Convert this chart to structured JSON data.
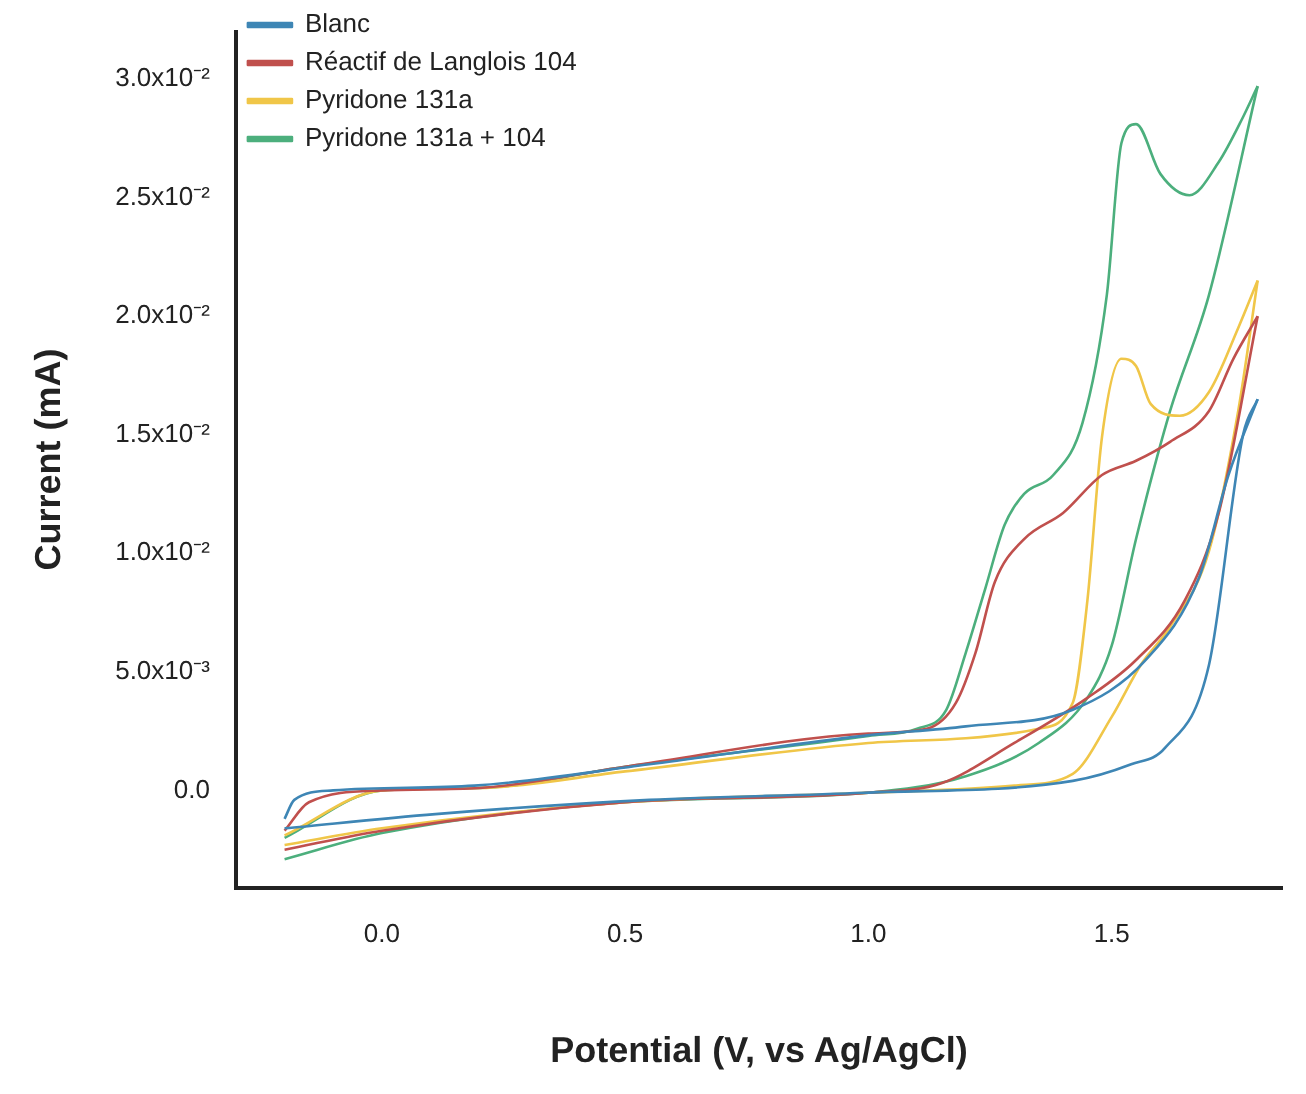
{
  "chart_data": {
    "type": "line",
    "xlabel": "Potential (V, vs Ag/AgCl)",
    "ylabel": "Current (mA)",
    "legend": "top left",
    "grid": false,
    "marker": "none",
    "xlim": [
      -0.3,
      1.85
    ],
    "xticks": [
      {
        "value": 0,
        "label": "0.0"
      },
      {
        "value": 0.5,
        "label": "0.5"
      },
      {
        "value": 1,
        "label": "1.0"
      },
      {
        "value": 1.5,
        "label": "1.5"
      }
    ],
    "ylim": [
      -0.0041,
      0.032
    ],
    "yticks": [
      {
        "value": 0,
        "label": "0.0"
      },
      {
        "value": 0.005,
        "label": "5.0x10⁻³"
      },
      {
        "value": 0.01,
        "label": "1.0x10⁻²"
      },
      {
        "value": 0.015,
        "label": "1.5x10⁻²"
      },
      {
        "value": 0.02,
        "label": "2.0x10⁻²"
      },
      {
        "value": 0.025,
        "label": "2.5x10⁻²"
      },
      {
        "value": 0.03,
        "label": "3.0x10⁻²"
      }
    ],
    "series": [
      {
        "name": "Blanc",
        "color": "#3e86b5",
        "x": [
          -0.2,
          0.11,
          0.55,
          0.99,
          1.42,
          1.54,
          1.61,
          1.7,
          1.77,
          1.8
        ],
        "values": [
          -0.0016,
          -0.001,
          -0.0004,
          -0.0001,
          0.0004,
          0.0011,
          0.0018,
          0.0053,
          0.015,
          0.0165
        ]
      },
      {
        "color": "#3e86b5",
        "x": [
          -0.2,
          -0.18,
          -0.1,
          0.19,
          0.55,
          0.99,
          1.2,
          1.42,
          1.57,
          1.68,
          1.74,
          1.8
        ],
        "values": [
          -0.0012,
          -0.0004,
          0,
          0.0002,
          0.0011,
          0.0023,
          0.0027,
          0.0034,
          0.0055,
          0.009,
          0.0133,
          0.0165
        ]
      },
      {
        "name": "Réactif de Langlois 104",
        "color": "#c0504d",
        "x": [
          -0.2,
          0,
          0.5,
          1,
          1.15,
          1.3,
          1.45,
          1.55,
          1.65,
          1.72,
          1.8
        ],
        "values": [
          -0.0025,
          -0.0017,
          -0.0005,
          -0.0001,
          0.0003,
          0.002,
          0.0039,
          0.0055,
          0.008,
          0.0117,
          0.02
        ]
      },
      {
        "color": "#c0504d",
        "x": [
          -0.2,
          -0.15,
          0,
          0.2,
          0.5,
          1,
          1.12,
          1.18,
          1.22,
          1.26,
          1.32,
          1.4,
          1.48,
          1.55,
          1.62,
          1.7,
          1.75,
          1.8
        ],
        "values": [
          -0.0017,
          -0.0005,
          0,
          0.0001,
          0.001,
          0.0024,
          0.0026,
          0.0037,
          0.0058,
          0.0088,
          0.0106,
          0.0117,
          0.0133,
          0.0139,
          0.0147,
          0.016,
          0.0182,
          0.02
        ]
      },
      {
        "name": "Pyridone 131a",
        "color": "#f0c648",
        "x": [
          -0.2,
          0,
          0.5,
          1,
          1.3,
          1.42,
          1.5,
          1.56,
          1.62,
          1.7,
          1.76,
          1.8
        ],
        "values": [
          -0.0023,
          -0.0016,
          -0.0005,
          -0.0001,
          0.0002,
          0.0007,
          0.0031,
          0.0053,
          0.0069,
          0.0101,
          0.016,
          0.0215
        ]
      },
      {
        "color": "#f0c648",
        "x": [
          -0.2,
          0,
          0.2,
          0.5,
          1,
          1.2,
          1.35,
          1.42,
          1.45,
          1.48,
          1.52,
          1.55,
          1.58,
          1.64,
          1.7,
          1.76,
          1.8
        ],
        "values": [
          -0.0019,
          0,
          0.0001,
          0.0008,
          0.002,
          0.0022,
          0.0026,
          0.0037,
          0.008,
          0.0149,
          0.0182,
          0.0179,
          0.0163,
          0.0158,
          0.0168,
          0.0195,
          0.0215
        ]
      },
      {
        "name": "Pyridone 131a + 104",
        "color": "#4caf7d",
        "x": [
          -0.2,
          0,
          0.5,
          1,
          1.2,
          1.35,
          1.45,
          1.5,
          1.55,
          1.62,
          1.7,
          1.8
        ],
        "values": [
          -0.0029,
          -0.0018,
          -0.0005,
          -0.0001,
          0.0006,
          0.002,
          0.0039,
          0.0061,
          0.0106,
          0.016,
          0.0209,
          0.0297
        ]
      },
      {
        "color": "#4caf7d",
        "x": [
          -0.2,
          0,
          0.2,
          0.5,
          1,
          1.1,
          1.16,
          1.2,
          1.24,
          1.28,
          1.32,
          1.38,
          1.44,
          1.49,
          1.52,
          1.55,
          1.6,
          1.66,
          1.72,
          1.77,
          1.8
        ],
        "values": [
          -0.002,
          0,
          0.0001,
          0.001,
          0.0023,
          0.0026,
          0.0034,
          0.0058,
          0.0085,
          0.0112,
          0.0125,
          0.0133,
          0.0155,
          0.0209,
          0.0273,
          0.0281,
          0.026,
          0.0251,
          0.0265,
          0.0284,
          0.0297
        ]
      }
    ]
  }
}
